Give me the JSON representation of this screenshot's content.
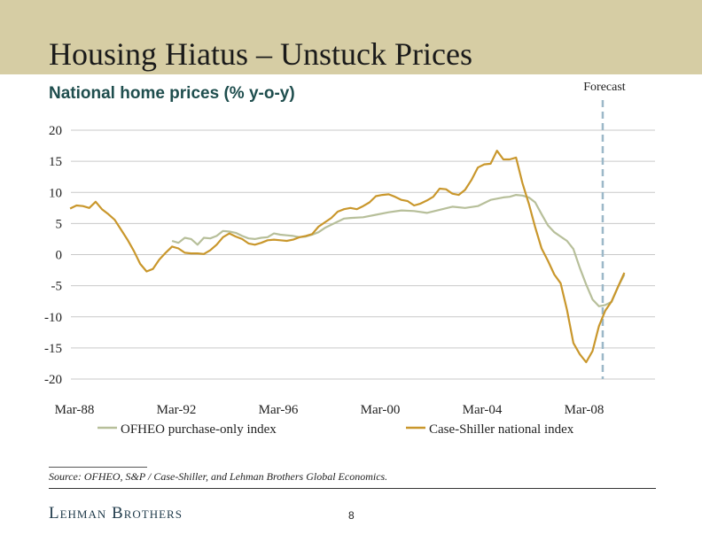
{
  "slide": {
    "title": "Housing Hiatus – Unstuck Prices",
    "subtitle": "National home prices (% y-o-y)",
    "source": "Source: OFHEO, S&P / Case-Shiller, and Lehman Brothers Global Economics.",
    "logo": "Lehman Brothers",
    "page_number": "8",
    "banner_color": "#d6cda4"
  },
  "chart_data": {
    "type": "line",
    "title": "",
    "xlabel": "",
    "ylabel": "",
    "ylim": [
      -20,
      20
    ],
    "xlim": [
      1988.0,
      2009.75
    ],
    "yticks": [
      20,
      15,
      10,
      5,
      0,
      -5,
      -10,
      -15,
      -20
    ],
    "ytick_labels": [
      "20",
      "15",
      "10",
      "5",
      "0",
      "-5",
      "-10",
      "-15",
      "-20"
    ],
    "xticks": [
      {
        "x": 1988.17,
        "label": "Mar-88"
      },
      {
        "x": 1992.17,
        "label": "Mar-92"
      },
      {
        "x": 1996.17,
        "label": "Mar-96"
      },
      {
        "x": 2000.17,
        "label": "Mar-00"
      },
      {
        "x": 2004.17,
        "label": "Mar-04"
      },
      {
        "x": 2008.17,
        "label": "Mar-08"
      }
    ],
    "grid": "horizontal",
    "legend_position": "bottom",
    "forecast": {
      "label": "Forecast",
      "x": 2008.9,
      "color": "#9cb8c8"
    },
    "series": [
      {
        "name": "OFHEO purchase-only index",
        "color": "#b7bf9a",
        "points": [
          [
            1992.0,
            2.2
          ],
          [
            1992.25,
            1.9
          ],
          [
            1992.5,
            2.7
          ],
          [
            1992.75,
            2.5
          ],
          [
            1993.0,
            1.6
          ],
          [
            1993.25,
            2.7
          ],
          [
            1993.5,
            2.6
          ],
          [
            1993.75,
            3.0
          ],
          [
            1994.0,
            3.8
          ],
          [
            1994.25,
            3.7
          ],
          [
            1994.5,
            3.5
          ],
          [
            1994.75,
            3.0
          ],
          [
            1995.0,
            2.6
          ],
          [
            1995.25,
            2.5
          ],
          [
            1995.5,
            2.7
          ],
          [
            1995.75,
            2.8
          ],
          [
            1996.0,
            3.4
          ],
          [
            1996.25,
            3.2
          ],
          [
            1996.5,
            3.1
          ],
          [
            1996.75,
            3.0
          ],
          [
            1997.0,
            2.8
          ],
          [
            1997.25,
            2.9
          ],
          [
            1997.5,
            3.2
          ],
          [
            1997.75,
            3.6
          ],
          [
            1998.0,
            4.3
          ],
          [
            1998.25,
            4.8
          ],
          [
            1998.5,
            5.3
          ],
          [
            1998.75,
            5.8
          ],
          [
            1999.0,
            5.9
          ],
          [
            1999.5,
            6.0
          ],
          [
            2000.0,
            6.4
          ],
          [
            2000.5,
            6.8
          ],
          [
            2001.0,
            7.1
          ],
          [
            2001.5,
            7.0
          ],
          [
            2002.0,
            6.7
          ],
          [
            2002.5,
            7.2
          ],
          [
            2003.0,
            7.7
          ],
          [
            2003.5,
            7.5
          ],
          [
            2004.0,
            7.8
          ],
          [
            2004.5,
            8.8
          ],
          [
            2005.0,
            9.2
          ],
          [
            2005.25,
            9.3
          ],
          [
            2005.5,
            9.6
          ],
          [
            2005.75,
            9.5
          ],
          [
            2006.0,
            9.2
          ],
          [
            2006.25,
            8.4
          ],
          [
            2006.5,
            6.5
          ],
          [
            2006.75,
            4.7
          ],
          [
            2007.0,
            3.6
          ],
          [
            2007.25,
            2.9
          ],
          [
            2007.5,
            2.2
          ],
          [
            2007.75,
            0.9
          ],
          [
            2008.0,
            -2.1
          ],
          [
            2008.25,
            -4.8
          ],
          [
            2008.5,
            -7.2
          ],
          [
            2008.75,
            -8.3
          ],
          [
            2009.0,
            -8.1
          ],
          [
            2009.25,
            -7.6
          ],
          [
            2009.5,
            -5.2
          ],
          [
            2009.75,
            -3.2
          ]
        ]
      },
      {
        "name": "Case-Shiller national index",
        "color": "#c9972c",
        "points": [
          [
            1988.0,
            7.4
          ],
          [
            1988.25,
            7.9
          ],
          [
            1988.5,
            7.8
          ],
          [
            1988.75,
            7.5
          ],
          [
            1989.0,
            8.5
          ],
          [
            1989.25,
            7.3
          ],
          [
            1989.5,
            6.5
          ],
          [
            1989.75,
            5.6
          ],
          [
            1990.0,
            4.0
          ],
          [
            1990.25,
            2.4
          ],
          [
            1990.5,
            0.6
          ],
          [
            1990.75,
            -1.5
          ],
          [
            1991.0,
            -2.7
          ],
          [
            1991.25,
            -2.3
          ],
          [
            1991.5,
            -0.8
          ],
          [
            1991.75,
            0.3
          ],
          [
            1992.0,
            1.3
          ],
          [
            1992.25,
            1.0
          ],
          [
            1992.5,
            0.3
          ],
          [
            1992.75,
            0.2
          ],
          [
            1993.0,
            0.2
          ],
          [
            1993.25,
            0.1
          ],
          [
            1993.5,
            0.7
          ],
          [
            1993.75,
            1.6
          ],
          [
            1994.0,
            2.8
          ],
          [
            1994.25,
            3.4
          ],
          [
            1994.5,
            2.9
          ],
          [
            1994.75,
            2.5
          ],
          [
            1995.0,
            1.8
          ],
          [
            1995.25,
            1.6
          ],
          [
            1995.5,
            1.9
          ],
          [
            1995.75,
            2.3
          ],
          [
            1996.0,
            2.4
          ],
          [
            1996.25,
            2.3
          ],
          [
            1996.5,
            2.2
          ],
          [
            1996.75,
            2.4
          ],
          [
            1997.0,
            2.8
          ],
          [
            1997.25,
            3.0
          ],
          [
            1997.5,
            3.3
          ],
          [
            1997.75,
            4.5
          ],
          [
            1998.0,
            5.2
          ],
          [
            1998.25,
            5.9
          ],
          [
            1998.5,
            6.9
          ],
          [
            1998.75,
            7.3
          ],
          [
            1999.0,
            7.5
          ],
          [
            1999.25,
            7.3
          ],
          [
            1999.5,
            7.8
          ],
          [
            1999.75,
            8.4
          ],
          [
            2000.0,
            9.4
          ],
          [
            2000.25,
            9.6
          ],
          [
            2000.5,
            9.7
          ],
          [
            2000.75,
            9.3
          ],
          [
            2001.0,
            8.8
          ],
          [
            2001.25,
            8.6
          ],
          [
            2001.5,
            7.9
          ],
          [
            2001.75,
            8.2
          ],
          [
            2002.0,
            8.7
          ],
          [
            2002.25,
            9.3
          ],
          [
            2002.5,
            10.6
          ],
          [
            2002.75,
            10.5
          ],
          [
            2003.0,
            9.8
          ],
          [
            2003.25,
            9.6
          ],
          [
            2003.5,
            10.4
          ],
          [
            2003.75,
            12.0
          ],
          [
            2004.0,
            14.0
          ],
          [
            2004.25,
            14.5
          ],
          [
            2004.5,
            14.6
          ],
          [
            2004.75,
            16.7
          ],
          [
            2005.0,
            15.3
          ],
          [
            2005.25,
            15.3
          ],
          [
            2005.5,
            15.6
          ],
          [
            2005.75,
            11.5
          ],
          [
            2006.0,
            8.2
          ],
          [
            2006.25,
            4.4
          ],
          [
            2006.5,
            1.0
          ],
          [
            2006.75,
            -1.0
          ],
          [
            2007.0,
            -3.2
          ],
          [
            2007.25,
            -4.6
          ],
          [
            2007.5,
            -8.9
          ],
          [
            2007.75,
            -14.2
          ],
          [
            2008.0,
            -16.0
          ],
          [
            2008.25,
            -17.3
          ],
          [
            2008.5,
            -15.5
          ],
          [
            2008.75,
            -11.5
          ],
          [
            2009.0,
            -9.0
          ],
          [
            2009.25,
            -7.5
          ],
          [
            2009.5,
            -5.2
          ],
          [
            2009.75,
            -2.9
          ]
        ]
      }
    ]
  }
}
